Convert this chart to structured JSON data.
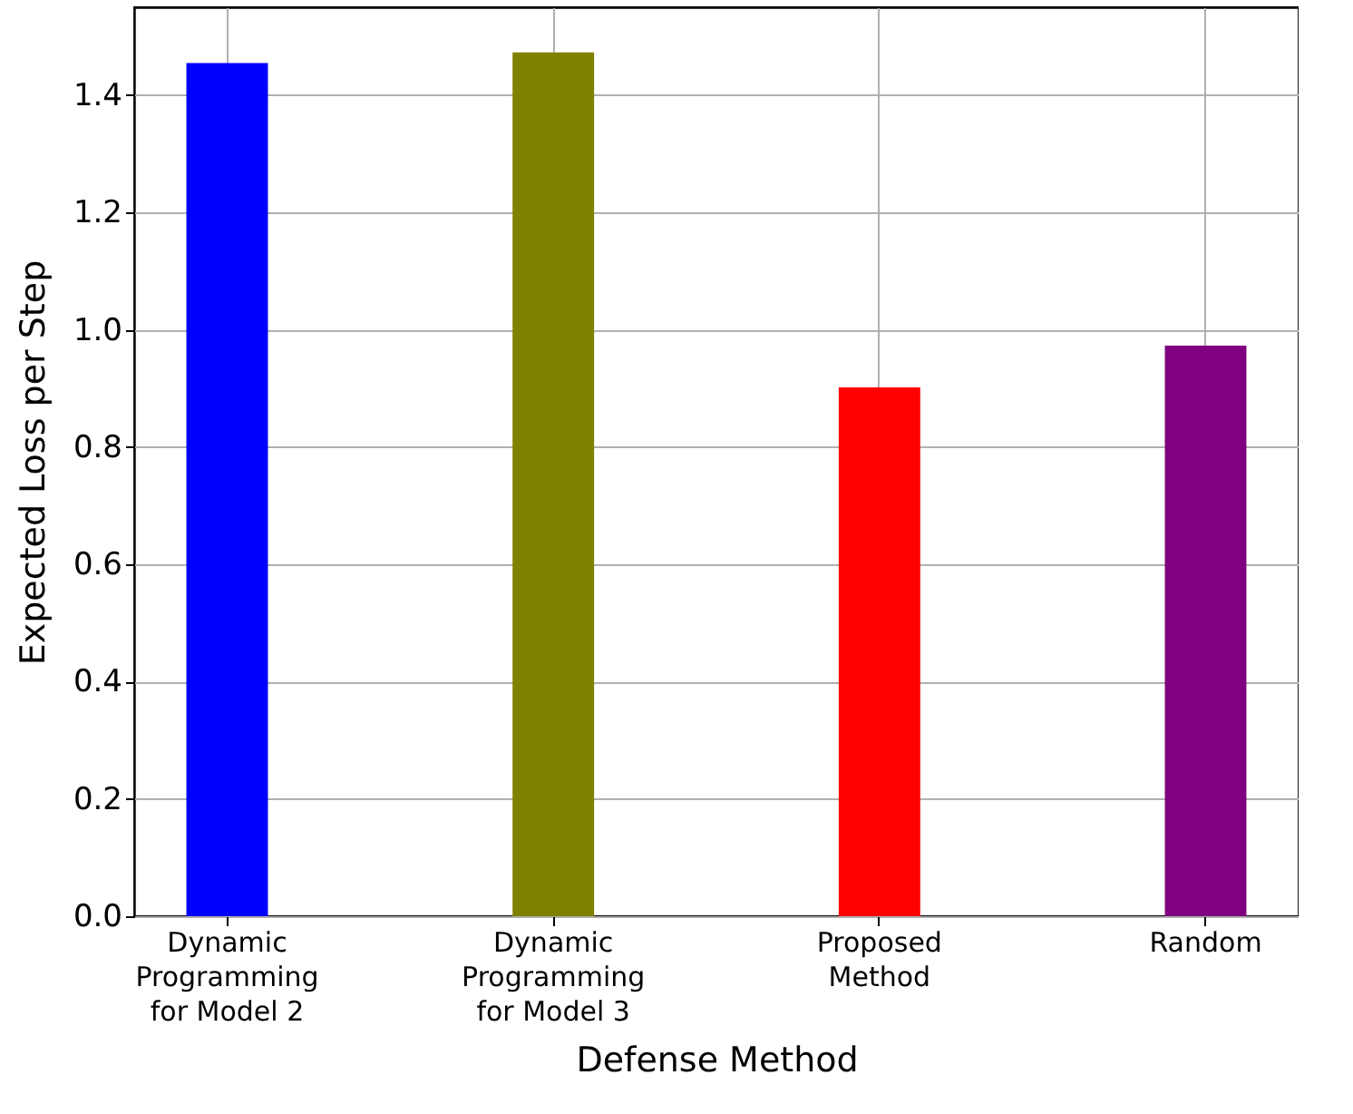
{
  "chart_data": {
    "type": "bar",
    "xlabel": "Defense Method",
    "ylabel": "Expected Loss per Step",
    "categories": [
      "Dynamic\nProgramming\nfor Model 2",
      "Dynamic\nProgramming\nfor Model 3",
      "Proposed\nMethod",
      "Random"
    ],
    "values": [
      1.455,
      1.473,
      0.902,
      0.973
    ],
    "colors": [
      "#0000ff",
      "#808000",
      "#ff0000",
      "#800080"
    ],
    "ylim": [
      0,
      1.55
    ],
    "yticks": [
      {
        "value": 0,
        "label": "0.0"
      },
      0.2,
      0.4,
      0.6,
      0.8,
      {
        "value": 1,
        "label": "1.0"
      },
      1.2,
      1.4
    ],
    "grid": true
  }
}
